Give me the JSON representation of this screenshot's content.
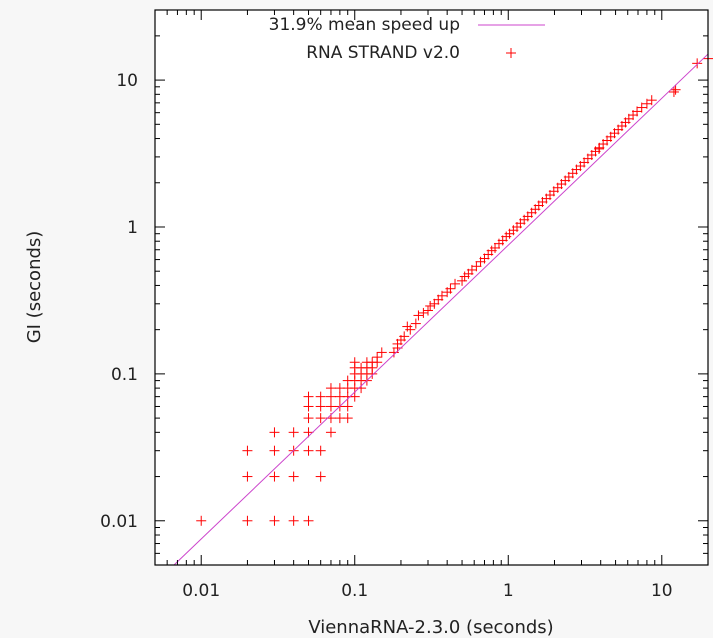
{
  "chart_data": {
    "type": "scatter",
    "xlabel": "ViennaRNA-2.3.0 (seconds)",
    "ylabel": "GI (seconds)",
    "xscale": "log",
    "yscale": "log",
    "xlim": [
      0.005,
      20
    ],
    "ylim": [
      0.005,
      30
    ],
    "x_ticks": [
      0.01,
      0.1,
      1,
      10
    ],
    "x_tick_labels": [
      "0.01",
      "0.1",
      "1",
      "10"
    ],
    "y_ticks": [
      0.01,
      0.1,
      1,
      10
    ],
    "y_tick_labels": [
      "0.01",
      "0.1",
      "1",
      "10"
    ],
    "grid": false,
    "legend_position": "top-right",
    "series": [
      {
        "name": "31.9% mean speed up",
        "type": "line",
        "color": "#cc44cc",
        "points": [
          [
            0.00665,
            0.005
          ],
          [
            20,
            15.04
          ]
        ]
      },
      {
        "name": "RNA STRAND v2.0",
        "type": "scatter",
        "marker": "+",
        "color": "#ff0000",
        "points": [
          [
            0.01,
            0.01
          ],
          [
            0.02,
            0.01
          ],
          [
            0.03,
            0.01
          ],
          [
            0.04,
            0.01
          ],
          [
            0.05,
            0.01
          ],
          [
            0.02,
            0.02
          ],
          [
            0.03,
            0.02
          ],
          [
            0.04,
            0.02
          ],
          [
            0.06,
            0.02
          ],
          [
            0.02,
            0.03
          ],
          [
            0.03,
            0.03
          ],
          [
            0.04,
            0.03
          ],
          [
            0.05,
            0.03
          ],
          [
            0.06,
            0.03
          ],
          [
            0.03,
            0.04
          ],
          [
            0.04,
            0.04
          ],
          [
            0.05,
            0.04
          ],
          [
            0.07,
            0.04
          ],
          [
            0.05,
            0.05
          ],
          [
            0.06,
            0.05
          ],
          [
            0.07,
            0.05
          ],
          [
            0.08,
            0.05
          ],
          [
            0.09,
            0.05
          ],
          [
            0.05,
            0.06
          ],
          [
            0.06,
            0.06
          ],
          [
            0.07,
            0.06
          ],
          [
            0.08,
            0.06
          ],
          [
            0.09,
            0.06
          ],
          [
            0.05,
            0.07
          ],
          [
            0.06,
            0.07
          ],
          [
            0.07,
            0.07
          ],
          [
            0.08,
            0.07
          ],
          [
            0.09,
            0.07
          ],
          [
            0.1,
            0.07
          ],
          [
            0.07,
            0.08
          ],
          [
            0.08,
            0.08
          ],
          [
            0.09,
            0.08
          ],
          [
            0.1,
            0.08
          ],
          [
            0.11,
            0.08
          ],
          [
            0.09,
            0.09
          ],
          [
            0.1,
            0.09
          ],
          [
            0.11,
            0.09
          ],
          [
            0.12,
            0.09
          ],
          [
            0.1,
            0.1
          ],
          [
            0.11,
            0.1
          ],
          [
            0.12,
            0.1
          ],
          [
            0.13,
            0.1
          ],
          [
            0.1,
            0.11
          ],
          [
            0.11,
            0.11
          ],
          [
            0.12,
            0.11
          ],
          [
            0.13,
            0.11
          ],
          [
            0.1,
            0.12
          ],
          [
            0.12,
            0.12
          ],
          [
            0.13,
            0.12
          ],
          [
            0.14,
            0.12
          ],
          [
            0.14,
            0.13
          ],
          [
            0.15,
            0.14
          ],
          [
            0.18,
            0.14
          ],
          [
            0.19,
            0.15
          ],
          [
            0.19,
            0.16
          ],
          [
            0.2,
            0.17
          ],
          [
            0.21,
            0.18
          ],
          [
            0.23,
            0.2
          ],
          [
            0.22,
            0.21
          ],
          [
            0.25,
            0.22
          ],
          [
            0.26,
            0.25
          ],
          [
            0.28,
            0.26
          ],
          [
            0.3,
            0.27
          ],
          [
            0.31,
            0.29
          ],
          [
            0.33,
            0.3
          ],
          [
            0.35,
            0.32
          ],
          [
            0.37,
            0.34
          ],
          [
            0.4,
            0.36
          ],
          [
            0.42,
            0.38
          ],
          [
            0.45,
            0.41
          ],
          [
            0.5,
            0.43
          ],
          [
            0.52,
            0.46
          ],
          [
            0.55,
            0.48
          ],
          [
            0.58,
            0.51
          ],
          [
            0.62,
            0.54
          ],
          [
            0.66,
            0.58
          ],
          [
            0.7,
            0.61
          ],
          [
            0.74,
            0.65
          ],
          [
            0.78,
            0.69
          ],
          [
            0.82,
            0.72
          ],
          [
            0.87,
            0.77
          ],
          [
            0.92,
            0.81
          ],
          [
            0.97,
            0.86
          ],
          [
            1.02,
            0.9
          ],
          [
            1.08,
            0.95
          ],
          [
            1.14,
            1.0
          ],
          [
            1.2,
            1.06
          ],
          [
            1.27,
            1.12
          ],
          [
            1.34,
            1.18
          ],
          [
            1.42,
            1.25
          ],
          [
            1.5,
            1.32
          ],
          [
            1.58,
            1.4
          ],
          [
            1.67,
            1.48
          ],
          [
            1.77,
            1.56
          ],
          [
            1.87,
            1.65
          ],
          [
            1.98,
            1.75
          ],
          [
            2.1,
            1.85
          ],
          [
            2.22,
            1.96
          ],
          [
            2.35,
            2.07
          ],
          [
            2.48,
            2.19
          ],
          [
            2.63,
            2.32
          ],
          [
            2.78,
            2.46
          ],
          [
            2.95,
            2.6
          ],
          [
            3.12,
            2.75
          ],
          [
            3.3,
            2.92
          ],
          [
            3.5,
            3.09
          ],
          [
            3.7,
            3.27
          ],
          [
            3.92,
            3.46
          ],
          [
            4.15,
            3.67
          ],
          [
            4.4,
            3.88
          ],
          [
            4.65,
            4.11
          ],
          [
            4.92,
            4.35
          ],
          [
            5.2,
            4.6
          ],
          [
            5.5,
            4.87
          ],
          [
            5.8,
            5.15
          ],
          [
            6.1,
            5.45
          ],
          [
            6.5,
            5.78
          ],
          [
            6.9,
            6.12
          ],
          [
            7.4,
            6.5
          ],
          [
            8.0,
            6.9
          ],
          [
            8.6,
            7.3
          ],
          [
            3.9,
            3.4
          ],
          [
            12.0,
            8.3
          ],
          [
            12.3,
            8.6
          ],
          [
            17.0,
            13.0
          ],
          [
            20.0,
            14.0
          ]
        ]
      }
    ]
  }
}
